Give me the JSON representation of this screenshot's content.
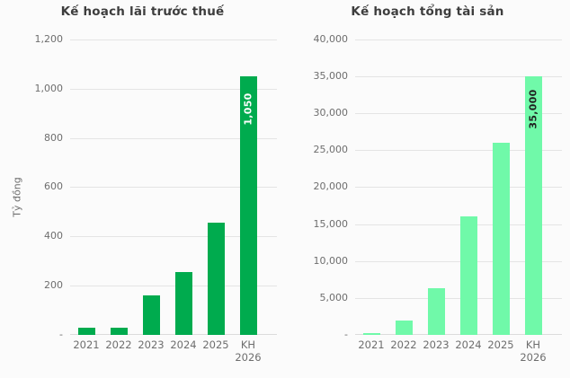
{
  "page": {
    "background": "#fbfbfb"
  },
  "chart_data": [
    {
      "type": "bar",
      "title": "Kế hoạch lãi trước thuế",
      "ylabel": "Tỷ đồng",
      "categories": [
        "2021",
        "2022",
        "2023",
        "2024",
        "2025",
        "KH 2026"
      ],
      "values": [
        30,
        30,
        160,
        255,
        455,
        1050
      ],
      "ylim": [
        0,
        1200
      ],
      "ytick_step": 200,
      "ytick_labels": [
        "-",
        "200",
        "400",
        "600",
        "800",
        "1,000",
        "1,200"
      ],
      "bar_color": "#00ab4e",
      "bar_labels": [
        null,
        null,
        null,
        null,
        null,
        "1,050"
      ],
      "bar_label_color": "#ffffff",
      "grid": true,
      "legend": "none"
    },
    {
      "type": "bar",
      "title": "Kế hoạch tổng tài sản",
      "ylabel": "",
      "categories": [
        "2021",
        "2022",
        "2023",
        "2024",
        "2025",
        "KH 2026"
      ],
      "values": [
        250,
        2000,
        6300,
        16000,
        26000,
        35000
      ],
      "ylim": [
        0,
        40000
      ],
      "ytick_step": 5000,
      "ytick_labels": [
        "-",
        "5,000",
        "10,000",
        "15,000",
        "20,000",
        "25,000",
        "30,000",
        "35,000",
        "40,000"
      ],
      "bar_color": "#70f9a9",
      "bar_labels": [
        null,
        null,
        null,
        null,
        null,
        "35,000"
      ],
      "bar_label_color": "#1f1f1f",
      "grid": true,
      "legend": "none"
    }
  ]
}
